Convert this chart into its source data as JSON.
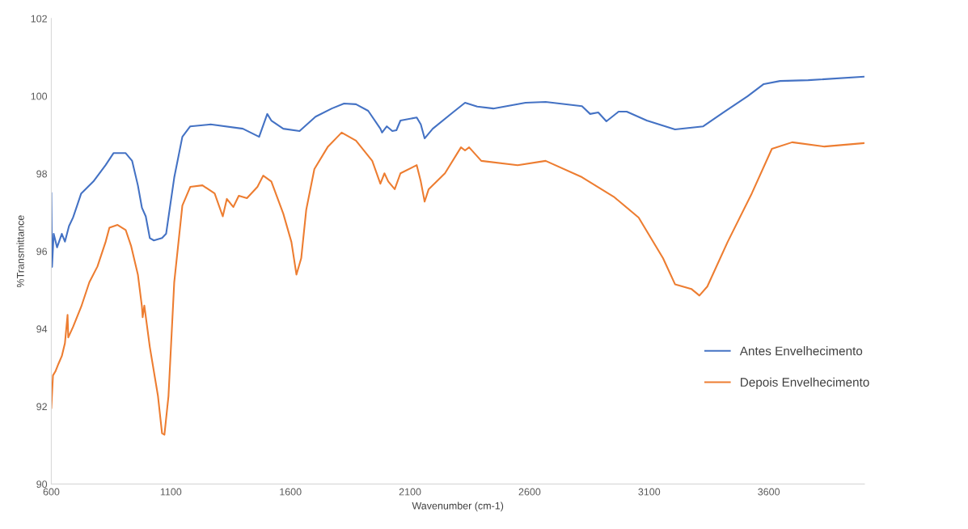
{
  "chart_data": {
    "type": "line",
    "xlabel": "Wavenumber (cm-1)",
    "ylabel": "%Transmittance",
    "xlim": [
      600,
      4000
    ],
    "xticks": [
      600,
      1100,
      1600,
      2100,
      2600,
      3100,
      3600
    ],
    "ylim": [
      90,
      102
    ],
    "yticks": [
      90,
      92,
      94,
      96,
      98,
      100,
      102
    ],
    "grid": false,
    "legend": "right",
    "marker": "none",
    "line_style": "solid",
    "series": [
      {
        "name": "Antes Envelhecimento",
        "color": "#4472c4",
        "x": [
          600,
          603,
          610,
          624,
          644,
          657,
          674,
          691,
          725,
          776,
          827,
          860,
          911,
          938,
          962,
          979,
          995,
          1012,
          1029,
          1063,
          1080,
          1114,
          1148,
          1181,
          1266,
          1401,
          1469,
          1503,
          1520,
          1570,
          1638,
          1705,
          1773,
          1824,
          1874,
          1925,
          1976,
          1983,
          2003,
          2026,
          2043,
          2060,
          2128,
          2145,
          2161,
          2195,
          2279,
          2330,
          2381,
          2448,
          2583,
          2667,
          2819,
          2853,
          2887,
          2921,
          2972,
          3006,
          3090,
          3208,
          3326,
          3411,
          3512,
          3579,
          3647,
          3765,
          4000
        ],
        "values": [
          97.5,
          95.6,
          96.45,
          96.1,
          96.45,
          96.25,
          96.65,
          96.87,
          97.49,
          97.8,
          98.22,
          98.53,
          98.53,
          98.33,
          97.7,
          97.12,
          96.9,
          96.34,
          96.28,
          96.34,
          96.45,
          97.9,
          98.95,
          99.22,
          99.27,
          99.16,
          98.95,
          99.54,
          99.37,
          99.16,
          99.1,
          99.47,
          99.68,
          99.81,
          99.79,
          99.62,
          99.16,
          99.06,
          99.22,
          99.1,
          99.12,
          99.37,
          99.45,
          99.27,
          98.91,
          99.16,
          99.58,
          99.83,
          99.73,
          99.68,
          99.83,
          99.85,
          99.74,
          99.54,
          99.58,
          99.35,
          99.6,
          99.6,
          99.37,
          99.14,
          99.22,
          99.58,
          100.0,
          100.31,
          100.39,
          100.41,
          100.5
        ]
      },
      {
        "name": "Depois Envelhecimento",
        "color": "#ed7d31",
        "x": [
          600,
          607,
          617,
          630,
          644,
          657,
          668,
          671,
          691,
          725,
          759,
          793,
          827,
          843,
          877,
          911,
          934,
          962,
          979,
          982,
          989,
          1012,
          1046,
          1063,
          1073,
          1090,
          1114,
          1148,
          1181,
          1232,
          1283,
          1317,
          1334,
          1361,
          1384,
          1418,
          1462,
          1486,
          1520,
          1570,
          1604,
          1625,
          1645,
          1666,
          1700,
          1757,
          1814,
          1874,
          1942,
          1976,
          1993,
          2009,
          2036,
          2060,
          2128,
          2145,
          2161,
          2178,
          2246,
          2313,
          2330,
          2347,
          2398,
          2550,
          2667,
          2819,
          2955,
          3056,
          3158,
          3208,
          3276,
          3310,
          3343,
          3428,
          3529,
          3613,
          3698,
          3833,
          4000
        ],
        "values": [
          91.96,
          92.8,
          92.9,
          93.1,
          93.3,
          93.63,
          94.36,
          93.78,
          94.05,
          94.57,
          95.2,
          95.61,
          96.24,
          96.61,
          96.68,
          96.55,
          96.13,
          95.4,
          94.57,
          94.3,
          94.6,
          93.53,
          92.27,
          91.31,
          91.27,
          92.27,
          95.2,
          97.18,
          97.66,
          97.7,
          97.49,
          96.9,
          97.35,
          97.14,
          97.43,
          97.37,
          97.66,
          97.95,
          97.8,
          96.97,
          96.24,
          95.4,
          95.82,
          97.07,
          98.12,
          98.7,
          99.06,
          98.85,
          98.33,
          97.74,
          98.01,
          97.8,
          97.6,
          98.01,
          98.22,
          97.8,
          97.28,
          97.6,
          98.01,
          98.68,
          98.6,
          98.68,
          98.33,
          98.22,
          98.33,
          97.91,
          97.39,
          96.87,
          95.82,
          95.15,
          95.03,
          94.86,
          95.09,
          96.24,
          97.49,
          98.64,
          98.81,
          98.7,
          98.79
        ]
      }
    ]
  }
}
